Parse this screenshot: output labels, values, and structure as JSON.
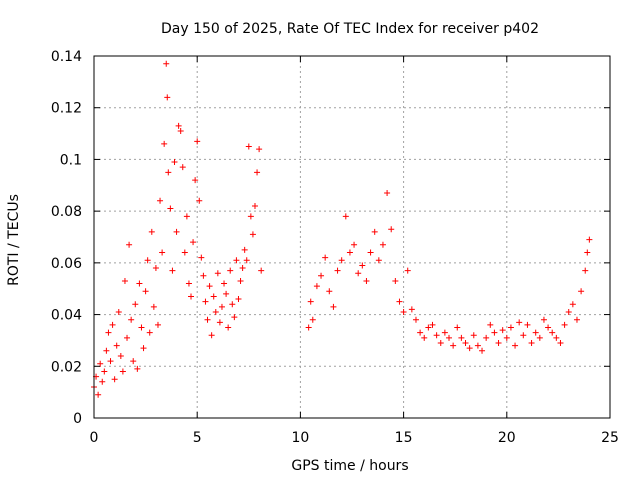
{
  "chart_data": {
    "type": "scatter",
    "title": "Day 150 of 2025, Rate Of TEC Index for receiver p402",
    "xlabel": "GPS time / hours",
    "ylabel": "ROTI / TECUs",
    "xlim": [
      0,
      25
    ],
    "ylim": [
      0,
      0.14
    ],
    "x_ticks": [
      0,
      5,
      10,
      15,
      20,
      25
    ],
    "y_ticks": [
      0,
      0.02,
      0.04,
      0.06,
      0.08,
      0.1,
      0.12,
      0.14
    ],
    "x_tick_labels": [
      "0",
      "5",
      "10",
      "15",
      "20",
      "25"
    ],
    "y_tick_labels": [
      "0",
      "0.02",
      "0.04",
      "0.06",
      "0.08",
      "0.1",
      "0.12",
      "0.14"
    ],
    "grid": true,
    "marker": "+",
    "color": "#ff0000",
    "series": [
      {
        "points": [
          [
            0.0,
            0.012
          ],
          [
            0.1,
            0.016
          ],
          [
            0.2,
            0.009
          ],
          [
            0.3,
            0.021
          ],
          [
            0.4,
            0.014
          ],
          [
            0.5,
            0.018
          ],
          [
            0.6,
            0.026
          ],
          [
            0.7,
            0.033
          ],
          [
            0.8,
            0.022
          ],
          [
            0.9,
            0.036
          ],
          [
            1.0,
            0.015
          ],
          [
            1.1,
            0.028
          ],
          [
            1.2,
            0.041
          ],
          [
            1.3,
            0.024
          ],
          [
            1.4,
            0.018
          ],
          [
            1.5,
            0.053
          ],
          [
            1.6,
            0.031
          ],
          [
            1.7,
            0.067
          ],
          [
            1.8,
            0.038
          ],
          [
            1.9,
            0.022
          ],
          [
            2.0,
            0.044
          ],
          [
            2.1,
            0.019
          ],
          [
            2.2,
            0.052
          ],
          [
            2.3,
            0.035
          ],
          [
            2.4,
            0.027
          ],
          [
            2.5,
            0.049
          ],
          [
            2.6,
            0.061
          ],
          [
            2.7,
            0.033
          ],
          [
            2.8,
            0.072
          ],
          [
            2.9,
            0.043
          ],
          [
            3.0,
            0.058
          ],
          [
            3.1,
            0.036
          ],
          [
            3.2,
            0.084
          ],
          [
            3.3,
            0.064
          ],
          [
            3.4,
            0.106
          ],
          [
            3.5,
            0.137
          ],
          [
            3.55,
            0.124
          ],
          [
            3.6,
            0.095
          ],
          [
            3.7,
            0.081
          ],
          [
            3.8,
            0.057
          ],
          [
            3.9,
            0.099
          ],
          [
            4.0,
            0.072
          ],
          [
            4.1,
            0.113
          ],
          [
            4.2,
            0.111
          ],
          [
            4.3,
            0.097
          ],
          [
            4.4,
            0.064
          ],
          [
            4.5,
            0.078
          ],
          [
            4.6,
            0.052
          ],
          [
            4.7,
            0.047
          ],
          [
            4.8,
            0.068
          ],
          [
            4.9,
            0.092
          ],
          [
            5.0,
            0.107
          ],
          [
            5.1,
            0.084
          ],
          [
            5.2,
            0.062
          ],
          [
            5.3,
            0.055
          ],
          [
            5.4,
            0.045
          ],
          [
            5.5,
            0.038
          ],
          [
            5.6,
            0.051
          ],
          [
            5.7,
            0.032
          ],
          [
            5.8,
            0.047
          ],
          [
            5.9,
            0.041
          ],
          [
            6.0,
            0.056
          ],
          [
            6.1,
            0.037
          ],
          [
            6.2,
            0.043
          ],
          [
            6.3,
            0.052
          ],
          [
            6.4,
            0.048
          ],
          [
            6.5,
            0.035
          ],
          [
            6.6,
            0.057
          ],
          [
            6.7,
            0.044
          ],
          [
            6.8,
            0.039
          ],
          [
            6.9,
            0.061
          ],
          [
            7.0,
            0.046
          ],
          [
            7.1,
            0.053
          ],
          [
            7.2,
            0.058
          ],
          [
            7.3,
            0.065
          ],
          [
            7.4,
            0.061
          ],
          [
            7.5,
            0.105
          ],
          [
            7.6,
            0.078
          ],
          [
            7.7,
            0.071
          ],
          [
            7.8,
            0.082
          ],
          [
            7.9,
            0.095
          ],
          [
            8.0,
            0.104
          ],
          [
            8.1,
            0.057
          ],
          [
            10.4,
            0.035
          ],
          [
            10.5,
            0.045
          ],
          [
            10.6,
            0.038
          ],
          [
            10.8,
            0.051
          ],
          [
            11.0,
            0.055
          ],
          [
            11.2,
            0.062
          ],
          [
            11.4,
            0.049
          ],
          [
            11.6,
            0.043
          ],
          [
            11.8,
            0.057
          ],
          [
            12.0,
            0.061
          ],
          [
            12.2,
            0.078
          ],
          [
            12.4,
            0.064
          ],
          [
            12.6,
            0.067
          ],
          [
            12.8,
            0.056
          ],
          [
            13.0,
            0.059
          ],
          [
            13.2,
            0.053
          ],
          [
            13.4,
            0.064
          ],
          [
            13.6,
            0.072
          ],
          [
            13.8,
            0.061
          ],
          [
            14.0,
            0.067
          ],
          [
            14.2,
            0.087
          ],
          [
            14.4,
            0.073
          ],
          [
            14.6,
            0.053
          ],
          [
            14.8,
            0.045
          ],
          [
            15.0,
            0.041
          ],
          [
            15.2,
            0.057
          ],
          [
            15.4,
            0.042
          ],
          [
            15.6,
            0.038
          ],
          [
            15.8,
            0.033
          ],
          [
            16.0,
            0.031
          ],
          [
            16.2,
            0.035
          ],
          [
            16.4,
            0.036
          ],
          [
            16.6,
            0.032
          ],
          [
            16.8,
            0.029
          ],
          [
            17.0,
            0.033
          ],
          [
            17.2,
            0.031
          ],
          [
            17.4,
            0.028
          ],
          [
            17.6,
            0.035
          ],
          [
            17.8,
            0.031
          ],
          [
            18.0,
            0.029
          ],
          [
            18.2,
            0.027
          ],
          [
            18.4,
            0.032
          ],
          [
            18.6,
            0.028
          ],
          [
            18.8,
            0.026
          ],
          [
            19.0,
            0.031
          ],
          [
            19.2,
            0.036
          ],
          [
            19.4,
            0.033
          ],
          [
            19.6,
            0.029
          ],
          [
            19.8,
            0.034
          ],
          [
            20.0,
            0.031
          ],
          [
            20.2,
            0.035
          ],
          [
            20.4,
            0.028
          ],
          [
            20.6,
            0.037
          ],
          [
            20.8,
            0.032
          ],
          [
            21.0,
            0.036
          ],
          [
            21.2,
            0.029
          ],
          [
            21.4,
            0.033
          ],
          [
            21.6,
            0.031
          ],
          [
            21.8,
            0.038
          ],
          [
            22.0,
            0.035
          ],
          [
            22.2,
            0.033
          ],
          [
            22.4,
            0.031
          ],
          [
            22.6,
            0.029
          ],
          [
            22.8,
            0.036
          ],
          [
            23.0,
            0.041
          ],
          [
            23.2,
            0.044
          ],
          [
            23.4,
            0.038
          ],
          [
            23.6,
            0.049
          ],
          [
            23.8,
            0.057
          ],
          [
            23.9,
            0.064
          ],
          [
            24.0,
            0.069
          ]
        ]
      }
    ]
  }
}
